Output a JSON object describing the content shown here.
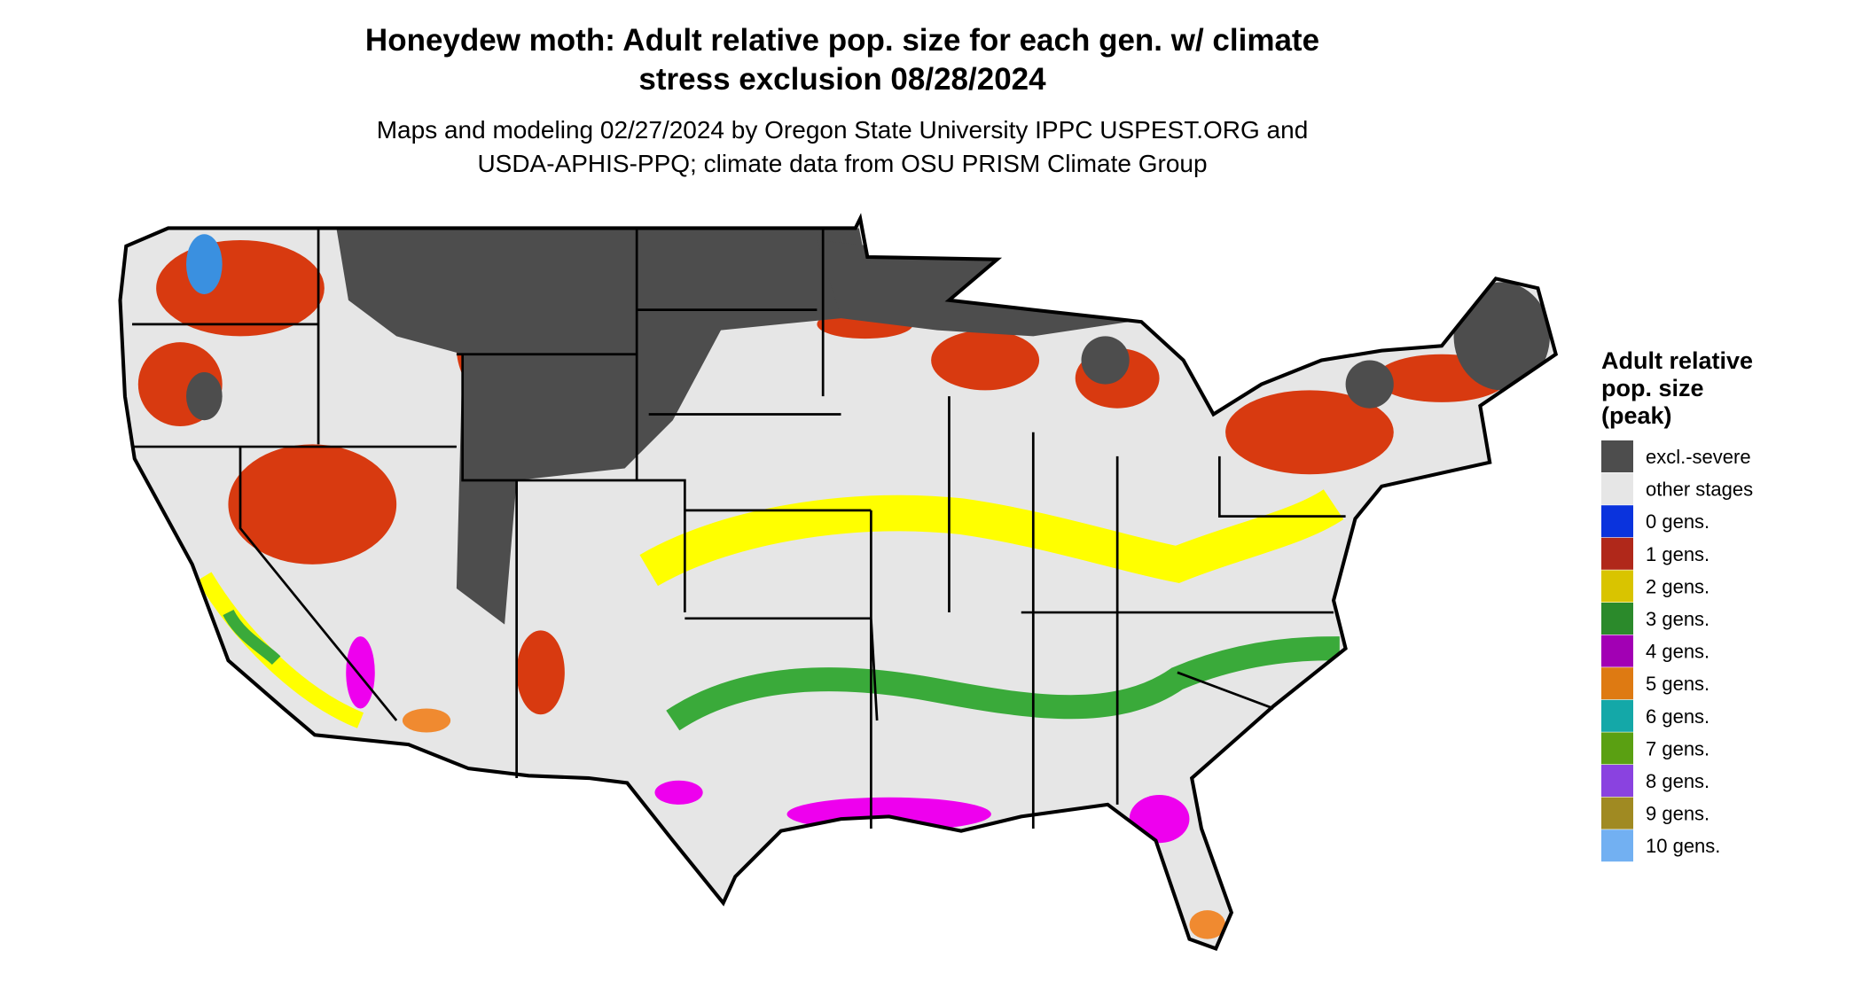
{
  "title": [
    "Honeydew moth: Adult relative pop. size for each gen. w/ climate",
    "stress exclusion 08/28/2024"
  ],
  "subtitle": [
    "Maps and modeling 02/27/2024 by Oregon State University IPPC USPEST.ORG and",
    "USDA-APHIS-PPQ; climate data from OSU PRISM Climate Group"
  ],
  "legend": {
    "title": [
      "Adult relative",
      "pop. size",
      "(peak)"
    ],
    "items": [
      {
        "label": "excl.-severe",
        "color": "#4d4d4d"
      },
      {
        "label": "other stages",
        "color": "#e6e6e6"
      },
      {
        "label": "0 gens.",
        "color": "#0a33dd"
      },
      {
        "label": "1 gens.",
        "color": "#b0281a"
      },
      {
        "label": "2 gens.",
        "color": "#d9c400"
      },
      {
        "label": "3 gens.",
        "color": "#2b8a2b"
      },
      {
        "label": "4 gens.",
        "color": "#a200b4"
      },
      {
        "label": "5 gens.",
        "color": "#de7a12"
      },
      {
        "label": "6 gens.",
        "color": "#14a8a8"
      },
      {
        "label": "7 gens.",
        "color": "#5aa012"
      },
      {
        "label": "8 gens.",
        "color": "#8a42e0"
      },
      {
        "label": "9 gens.",
        "color": "#a08a22"
      },
      {
        "label": "10 gens.",
        "color": "#72b0f2"
      }
    ]
  }
}
